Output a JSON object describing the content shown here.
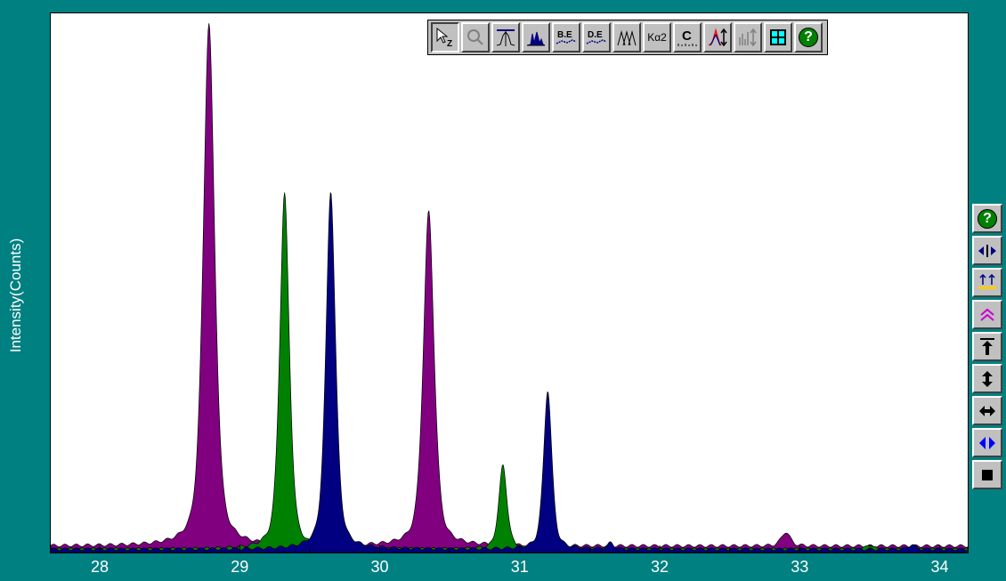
{
  "chart_data": {
    "type": "area",
    "xlabel": "",
    "ylabel": "Intensity(Counts)",
    "xlim": [
      27.65,
      34.2
    ],
    "ylim": [
      0,
      100
    ],
    "x_ticks": [
      28,
      29,
      30,
      31,
      32,
      33,
      34
    ],
    "grid": false,
    "series": [
      {
        "color": "#800080",
        "baseline": 1.2,
        "peaks": [
          {
            "center": 28.78,
            "height": 97,
            "width": 0.09
          },
          {
            "center": 30.35,
            "height": 62,
            "width": 0.085
          },
          {
            "center": 30.85,
            "height": 2,
            "width": 0.05
          },
          {
            "center": 32.9,
            "height": 2.6,
            "width": 0.07
          }
        ]
      },
      {
        "color": "#008000",
        "baseline": 0.6,
        "peaks": [
          {
            "center": 29.32,
            "height": 66,
            "width": 0.075
          },
          {
            "center": 30.88,
            "height": 15.5,
            "width": 0.065
          },
          {
            "center": 33.5,
            "height": 0.9,
            "width": 0.05
          }
        ]
      },
      {
        "color": "#000080",
        "baseline": 0.6,
        "peaks": [
          {
            "center": 29.65,
            "height": 66.5,
            "width": 0.075
          },
          {
            "center": 31.2,
            "height": 29.5,
            "width": 0.065
          },
          {
            "center": 31.65,
            "height": 1.1,
            "width": 0.05
          },
          {
            "center": 33.8,
            "height": 0.9,
            "width": 0.05
          }
        ]
      }
    ]
  },
  "toolbar": {
    "buttons": [
      {
        "icon": "zoom-select-icon",
        "label": "Z"
      },
      {
        "icon": "magnifier-icon",
        "label": ""
      },
      {
        "icon": "peak-marker-icon",
        "label": ""
      },
      {
        "icon": "peak-fill-icon",
        "label": ""
      },
      {
        "icon": "background-edit-icon",
        "label": "B.E"
      },
      {
        "icon": "data-edit-icon",
        "label": "D.E"
      },
      {
        "icon": "peaks-outline-icon",
        "label": ""
      },
      {
        "icon": "ka2-icon",
        "label": "Kα2"
      },
      {
        "icon": "calibrate-icon",
        "label": "C"
      },
      {
        "icon": "peak-scale-icon",
        "label": ""
      },
      {
        "icon": "bar-scale-icon",
        "label": ""
      },
      {
        "icon": "grid-icon",
        "label": ""
      },
      {
        "icon": "help-icon",
        "label": "?"
      }
    ]
  },
  "side_toolbar": {
    "buttons": [
      {
        "icon": "help-icon",
        "label": "?"
      },
      {
        "icon": "expand-horizontal-icon",
        "label": ""
      },
      {
        "icon": "baseline-adjust-icon",
        "label": ""
      },
      {
        "icon": "double-up-icon",
        "label": "≫"
      },
      {
        "icon": "arrow-up-top-icon",
        "label": ""
      },
      {
        "icon": "arrow-up-down-icon",
        "label": ""
      },
      {
        "icon": "arrow-left-right-icon",
        "label": ""
      },
      {
        "icon": "shift-left-right-icon",
        "label": ""
      },
      {
        "icon": "stop-icon",
        "label": ""
      }
    ]
  }
}
